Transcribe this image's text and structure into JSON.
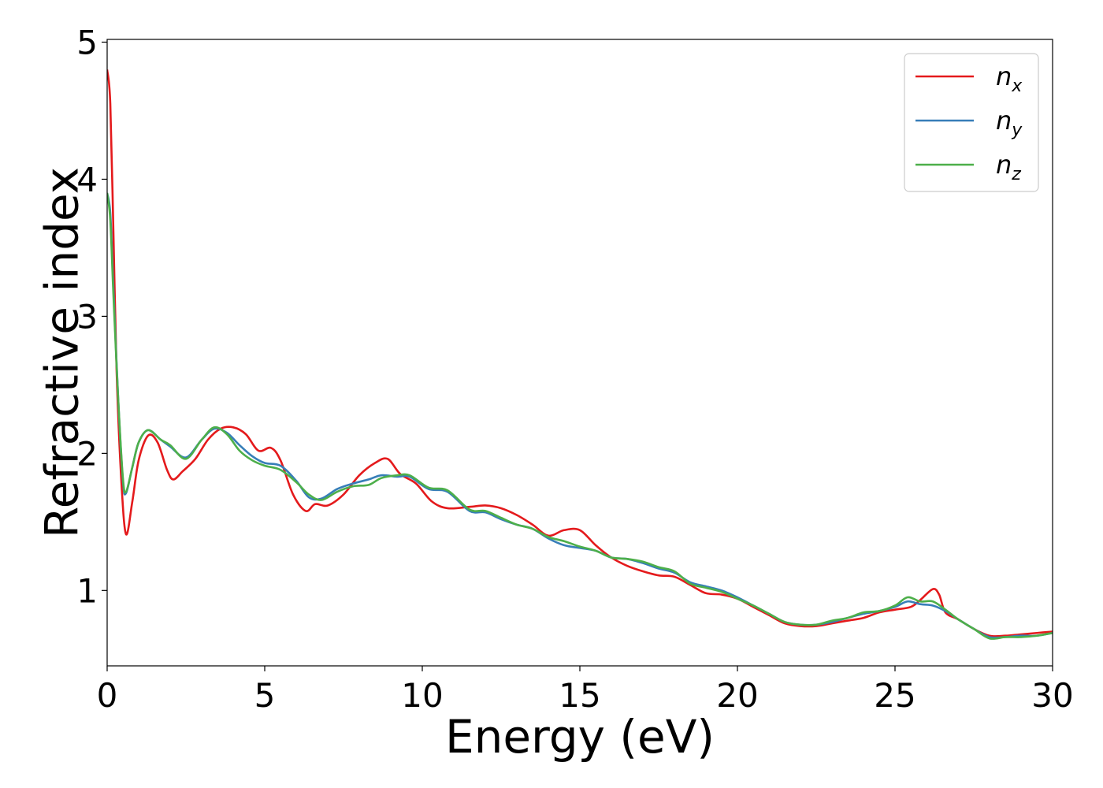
{
  "chart_data": {
    "type": "line",
    "xlabel": "Energy (eV)",
    "ylabel": "Refractive index",
    "xlim": [
      0,
      30
    ],
    "ylim": [
      0.45,
      5.02
    ],
    "xticks": [
      0,
      5,
      10,
      15,
      20,
      25,
      30
    ],
    "yticks": [
      1,
      2,
      3,
      4,
      5
    ],
    "grid": false,
    "legend_position": "top-right",
    "series": [
      {
        "name": "n_x",
        "label_main": "n",
        "label_sub": "x",
        "color": "#e41a1c",
        "points": [
          [
            0,
            4.8
          ],
          [
            0.1,
            4.55
          ],
          [
            0.2,
            3.6
          ],
          [
            0.3,
            2.6
          ],
          [
            0.45,
            1.8
          ],
          [
            0.6,
            1.41
          ],
          [
            0.8,
            1.65
          ],
          [
            1.0,
            1.95
          ],
          [
            1.3,
            2.13
          ],
          [
            1.6,
            2.08
          ],
          [
            1.9,
            1.88
          ],
          [
            2.1,
            1.81
          ],
          [
            2.4,
            1.87
          ],
          [
            2.8,
            1.96
          ],
          [
            3.2,
            2.1
          ],
          [
            3.6,
            2.18
          ],
          [
            4.0,
            2.19
          ],
          [
            4.4,
            2.14
          ],
          [
            4.8,
            2.02
          ],
          [
            5.2,
            2.04
          ],
          [
            5.5,
            1.95
          ],
          [
            5.9,
            1.7
          ],
          [
            6.3,
            1.58
          ],
          [
            6.6,
            1.63
          ],
          [
            7.0,
            1.62
          ],
          [
            7.5,
            1.7
          ],
          [
            8.0,
            1.84
          ],
          [
            8.5,
            1.93
          ],
          [
            8.9,
            1.96
          ],
          [
            9.3,
            1.85
          ],
          [
            9.8,
            1.78
          ],
          [
            10.3,
            1.65
          ],
          [
            10.8,
            1.6
          ],
          [
            11.5,
            1.61
          ],
          [
            12.0,
            1.62
          ],
          [
            12.5,
            1.6
          ],
          [
            13.0,
            1.55
          ],
          [
            13.5,
            1.48
          ],
          [
            14.0,
            1.4
          ],
          [
            14.5,
            1.44
          ],
          [
            15.0,
            1.44
          ],
          [
            15.5,
            1.33
          ],
          [
            16.0,
            1.24
          ],
          [
            16.5,
            1.18
          ],
          [
            17.0,
            1.14
          ],
          [
            17.5,
            1.11
          ],
          [
            18.0,
            1.1
          ],
          [
            18.5,
            1.04
          ],
          [
            19.0,
            0.98
          ],
          [
            19.5,
            0.97
          ],
          [
            20.0,
            0.94
          ],
          [
            20.5,
            0.88
          ],
          [
            21.0,
            0.82
          ],
          [
            21.5,
            0.76
          ],
          [
            22.0,
            0.74
          ],
          [
            22.5,
            0.74
          ],
          [
            23.0,
            0.76
          ],
          [
            23.5,
            0.78
          ],
          [
            24.0,
            0.8
          ],
          [
            24.5,
            0.84
          ],
          [
            25.0,
            0.86
          ],
          [
            25.5,
            0.88
          ],
          [
            25.8,
            0.93
          ],
          [
            26.2,
            1.01
          ],
          [
            26.4,
            0.97
          ],
          [
            26.6,
            0.84
          ],
          [
            27.0,
            0.79
          ],
          [
            27.5,
            0.72
          ],
          [
            28.0,
            0.67
          ],
          [
            28.5,
            0.67
          ],
          [
            29.0,
            0.68
          ],
          [
            29.5,
            0.69
          ],
          [
            30,
            0.7
          ]
        ]
      },
      {
        "name": "n_y",
        "label_main": "n",
        "label_sub": "y",
        "color": "#377eb8",
        "points": [
          [
            0,
            3.9
          ],
          [
            0.1,
            3.75
          ],
          [
            0.2,
            3.2
          ],
          [
            0.35,
            2.4
          ],
          [
            0.5,
            1.8
          ],
          [
            0.6,
            1.71
          ],
          [
            0.8,
            1.9
          ],
          [
            1.0,
            2.08
          ],
          [
            1.3,
            2.17
          ],
          [
            1.7,
            2.1
          ],
          [
            2.0,
            2.05
          ],
          [
            2.5,
            1.97
          ],
          [
            3.0,
            2.1
          ],
          [
            3.4,
            2.18
          ],
          [
            3.8,
            2.15
          ],
          [
            4.2,
            2.06
          ],
          [
            4.6,
            1.98
          ],
          [
            5.0,
            1.93
          ],
          [
            5.5,
            1.91
          ],
          [
            6.0,
            1.8
          ],
          [
            6.4,
            1.68
          ],
          [
            6.8,
            1.67
          ],
          [
            7.3,
            1.74
          ],
          [
            7.8,
            1.78
          ],
          [
            8.3,
            1.81
          ],
          [
            8.7,
            1.84
          ],
          [
            9.2,
            1.83
          ],
          [
            9.6,
            1.83
          ],
          [
            10.2,
            1.74
          ],
          [
            10.8,
            1.72
          ],
          [
            11.5,
            1.58
          ],
          [
            12.0,
            1.57
          ],
          [
            12.5,
            1.52
          ],
          [
            13.0,
            1.48
          ],
          [
            13.5,
            1.45
          ],
          [
            14.0,
            1.38
          ],
          [
            14.5,
            1.33
          ],
          [
            15.0,
            1.31
          ],
          [
            15.5,
            1.29
          ],
          [
            16.0,
            1.24
          ],
          [
            16.5,
            1.23
          ],
          [
            17.0,
            1.2
          ],
          [
            17.5,
            1.16
          ],
          [
            18.0,
            1.13
          ],
          [
            18.5,
            1.06
          ],
          [
            19.0,
            1.03
          ],
          [
            19.5,
            1.0
          ],
          [
            20.0,
            0.95
          ],
          [
            20.5,
            0.89
          ],
          [
            21.0,
            0.83
          ],
          [
            21.5,
            0.77
          ],
          [
            22.0,
            0.75
          ],
          [
            22.5,
            0.75
          ],
          [
            23.0,
            0.77
          ],
          [
            23.5,
            0.8
          ],
          [
            24.0,
            0.83
          ],
          [
            24.5,
            0.85
          ],
          [
            25.0,
            0.88
          ],
          [
            25.4,
            0.92
          ],
          [
            25.8,
            0.9
          ],
          [
            26.2,
            0.89
          ],
          [
            26.6,
            0.85
          ],
          [
            27.0,
            0.79
          ],
          [
            27.5,
            0.72
          ],
          [
            28.0,
            0.66
          ],
          [
            28.5,
            0.66
          ],
          [
            29.0,
            0.67
          ],
          [
            29.5,
            0.67
          ],
          [
            30,
            0.69
          ]
        ]
      },
      {
        "name": "n_z",
        "label_main": "n",
        "label_sub": "z",
        "color": "#4daf4a",
        "points": [
          [
            0,
            3.9
          ],
          [
            0.1,
            3.7
          ],
          [
            0.2,
            3.15
          ],
          [
            0.35,
            2.4
          ],
          [
            0.5,
            1.82
          ],
          [
            0.6,
            1.72
          ],
          [
            0.8,
            1.9
          ],
          [
            1.0,
            2.08
          ],
          [
            1.3,
            2.17
          ],
          [
            1.7,
            2.1
          ],
          [
            2.0,
            2.06
          ],
          [
            2.5,
            1.96
          ],
          [
            3.0,
            2.1
          ],
          [
            3.4,
            2.19
          ],
          [
            3.8,
            2.14
          ],
          [
            4.2,
            2.02
          ],
          [
            4.6,
            1.95
          ],
          [
            5.0,
            1.91
          ],
          [
            5.5,
            1.88
          ],
          [
            6.0,
            1.79
          ],
          [
            6.4,
            1.7
          ],
          [
            6.8,
            1.66
          ],
          [
            7.3,
            1.72
          ],
          [
            7.8,
            1.76
          ],
          [
            8.3,
            1.77
          ],
          [
            8.7,
            1.82
          ],
          [
            9.2,
            1.84
          ],
          [
            9.6,
            1.84
          ],
          [
            10.2,
            1.75
          ],
          [
            10.8,
            1.73
          ],
          [
            11.5,
            1.59
          ],
          [
            12.0,
            1.58
          ],
          [
            12.5,
            1.53
          ],
          [
            13.0,
            1.48
          ],
          [
            13.5,
            1.45
          ],
          [
            14.0,
            1.39
          ],
          [
            14.5,
            1.36
          ],
          [
            15.0,
            1.32
          ],
          [
            15.5,
            1.29
          ],
          [
            16.0,
            1.24
          ],
          [
            16.5,
            1.23
          ],
          [
            17.0,
            1.21
          ],
          [
            17.5,
            1.17
          ],
          [
            18.0,
            1.14
          ],
          [
            18.5,
            1.05
          ],
          [
            19.0,
            1.02
          ],
          [
            19.5,
            0.99
          ],
          [
            20.0,
            0.94
          ],
          [
            20.5,
            0.89
          ],
          [
            21.0,
            0.83
          ],
          [
            21.5,
            0.77
          ],
          [
            22.0,
            0.75
          ],
          [
            22.5,
            0.75
          ],
          [
            23.0,
            0.78
          ],
          [
            23.5,
            0.8
          ],
          [
            24.0,
            0.84
          ],
          [
            24.5,
            0.85
          ],
          [
            25.0,
            0.89
          ],
          [
            25.4,
            0.95
          ],
          [
            25.8,
            0.92
          ],
          [
            26.2,
            0.92
          ],
          [
            26.6,
            0.86
          ],
          [
            27.0,
            0.79
          ],
          [
            27.5,
            0.72
          ],
          [
            28.0,
            0.65
          ],
          [
            28.5,
            0.66
          ],
          [
            29.0,
            0.66
          ],
          [
            29.5,
            0.67
          ],
          [
            30,
            0.69
          ]
        ]
      }
    ]
  }
}
